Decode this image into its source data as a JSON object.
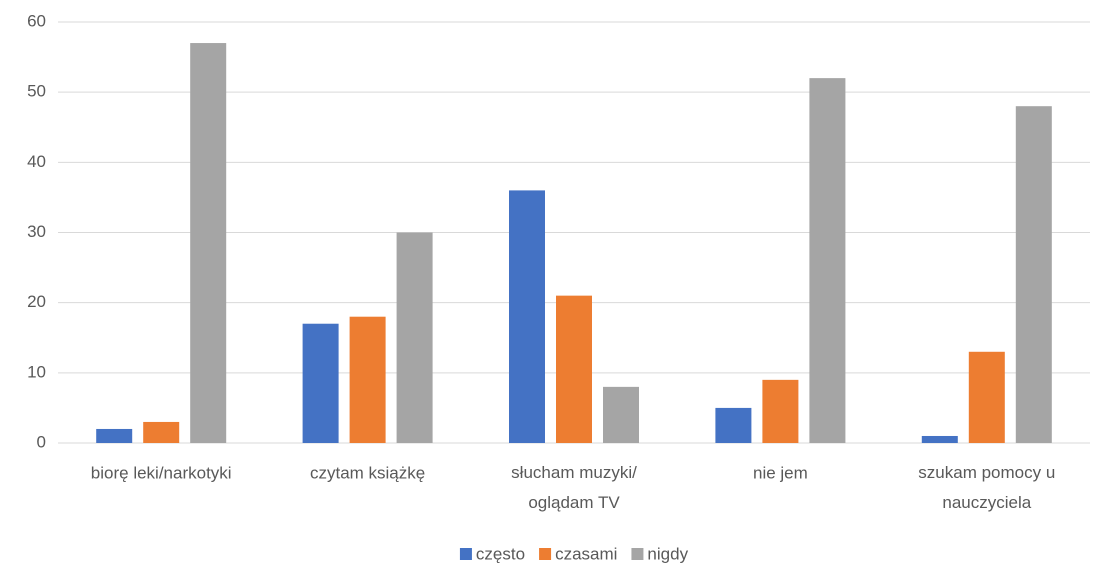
{
  "chart_data": {
    "type": "bar",
    "categories": [
      "biorę leki/narkotyki",
      "czytam książkę",
      "słucham muzyki/ oglądam TV",
      "nie jem",
      "szukam pomocy u nauczyciela"
    ],
    "series": [
      {
        "name": "często",
        "color": "#4472c4",
        "values": [
          2,
          17,
          36,
          5,
          1
        ]
      },
      {
        "name": "czasami",
        "color": "#ed7d31",
        "values": [
          3,
          18,
          21,
          9,
          13
        ]
      },
      {
        "name": "nigdy",
        "color": "#a5a5a5",
        "values": [
          57,
          30,
          8,
          52,
          48
        ]
      }
    ],
    "ylim": [
      0,
      60
    ],
    "yticks": [
      0,
      10,
      20,
      30,
      40,
      50,
      60
    ],
    "grid": true,
    "legend": "bottom"
  }
}
